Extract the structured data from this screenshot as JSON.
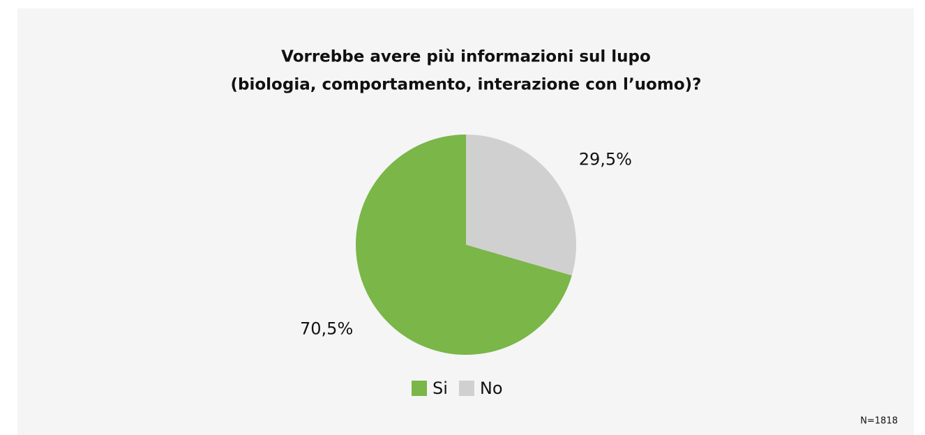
{
  "chart_data": {
    "type": "pie",
    "title": [
      "Vorrebbe avere più informazioni sul lupo",
      "(biologia, comportamento, interazione con l’uomo)?"
    ],
    "categories": [
      "Si",
      "No"
    ],
    "values": [
      70.5,
      29.5
    ],
    "value_labels": [
      "70,5%",
      "29,5%"
    ],
    "colors": [
      "#7ab648",
      "#d0d0d0"
    ],
    "legend": "bottom",
    "annotation": "N=1818"
  }
}
